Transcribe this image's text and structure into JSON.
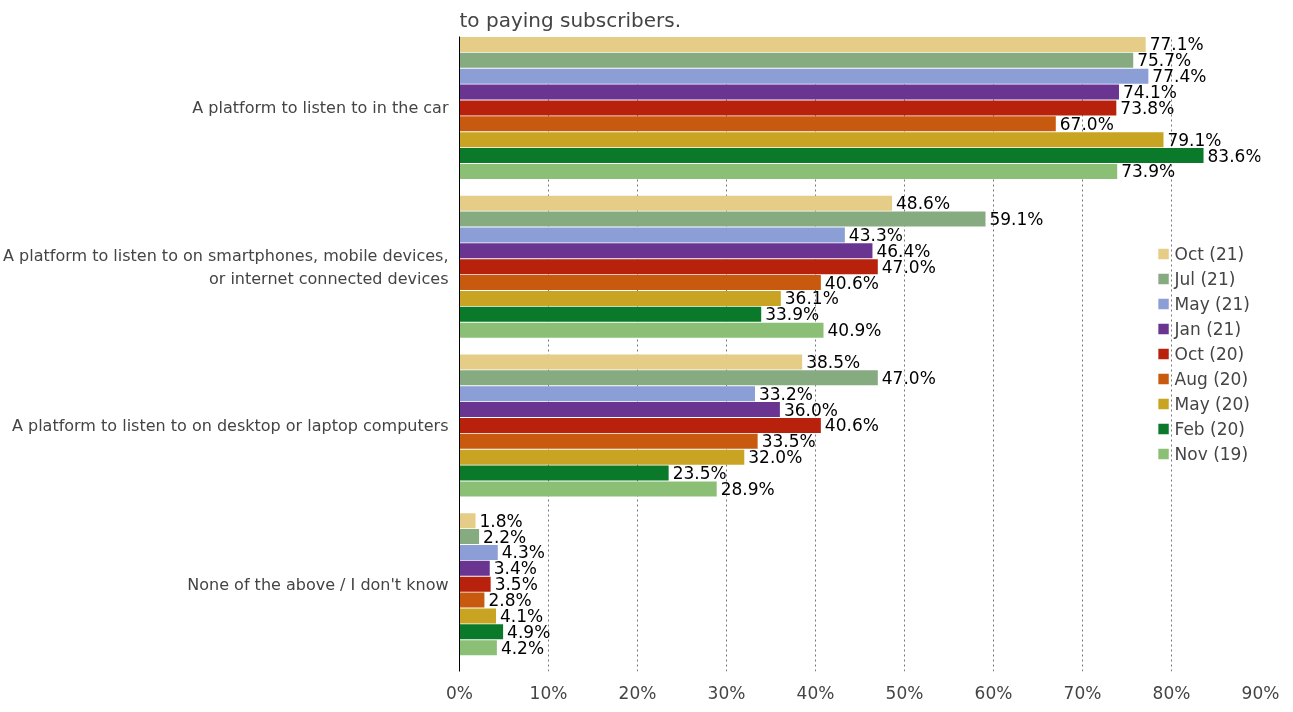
{
  "chart_data": {
    "type": "bar",
    "orientation": "horizontal",
    "title": "to paying subscribers.",
    "categories": [
      "A platform to listen to in the car",
      "A platform to listen to on smartphones, mobile devices,\nor internet connected devices",
      "A platform to listen to on desktop or laptop computers",
      "None of the above / I don't know"
    ],
    "series": [
      {
        "name": "Oct (21)",
        "color": "#e5cc87",
        "values": [
          77.1,
          48.6,
          38.5,
          1.8
        ],
        "value_labels": [
          "77.1%",
          "48.6%",
          "38.5%",
          "1.8%"
        ]
      },
      {
        "name": "Jul (21)",
        "color": "#86ab80",
        "values": [
          75.7,
          59.1,
          47.0,
          2.2
        ],
        "value_labels": [
          "75.7%",
          "59.1%",
          "47.0%",
          "2.2%"
        ]
      },
      {
        "name": "May (21)",
        "color": "#8c9ed6",
        "values": [
          77.4,
          43.3,
          33.2,
          4.3
        ],
        "value_labels": [
          "77.4%",
          "43.3%",
          "33.2%",
          "4.3%"
        ]
      },
      {
        "name": "Jan (21)",
        "color": "#6a3591",
        "values": [
          74.1,
          46.4,
          36.0,
          3.4
        ],
        "value_labels": [
          "74.1%",
          "46.4%",
          "36.0%",
          "3.4%"
        ]
      },
      {
        "name": "Oct (20)",
        "color": "#b8210c",
        "values": [
          73.8,
          47.0,
          40.6,
          3.5
        ],
        "value_labels": [
          "73.8%",
          "47.0%",
          "40.6%",
          "3.5%"
        ]
      },
      {
        "name": "Aug (20)",
        "color": "#c85a10",
        "values": [
          67.0,
          40.6,
          33.5,
          2.8
        ],
        "value_labels": [
          "67.0%",
          "40.6%",
          "33.5%",
          "2.8%"
        ]
      },
      {
        "name": "May (20)",
        "color": "#c8a422",
        "values": [
          79.1,
          36.1,
          32.0,
          4.1
        ],
        "value_labels": [
          "79.1%",
          "36.1%",
          "32.0%",
          "4.1%"
        ]
      },
      {
        "name": "Feb (20)",
        "color": "#0a7a2a",
        "values": [
          83.6,
          33.9,
          23.5,
          4.9
        ],
        "value_labels": [
          "83.6%",
          "33.9%",
          "23.5%",
          "4.9%"
        ]
      },
      {
        "name": "Nov (19)",
        "color": "#8cbf76",
        "values": [
          73.9,
          40.9,
          28.9,
          4.2
        ],
        "value_labels": [
          "73.9%",
          "40.9%",
          "28.9%",
          "4.2%"
        ]
      }
    ],
    "xlim": [
      0,
      90
    ],
    "xticks": [
      {
        "value": 0,
        "label": "0%"
      },
      {
        "value": 10,
        "label": "10%"
      },
      {
        "value": 20,
        "label": "20%"
      },
      {
        "value": 30,
        "label": "30%"
      },
      {
        "value": 40,
        "label": "40%"
      },
      {
        "value": 50,
        "label": "50%"
      },
      {
        "value": 60,
        "label": "60%"
      },
      {
        "value": 70,
        "label": "70%"
      },
      {
        "value": 80,
        "label": "80%"
      },
      {
        "value": 90,
        "label": "90%"
      }
    ],
    "grid": "x",
    "legend": "right"
  }
}
